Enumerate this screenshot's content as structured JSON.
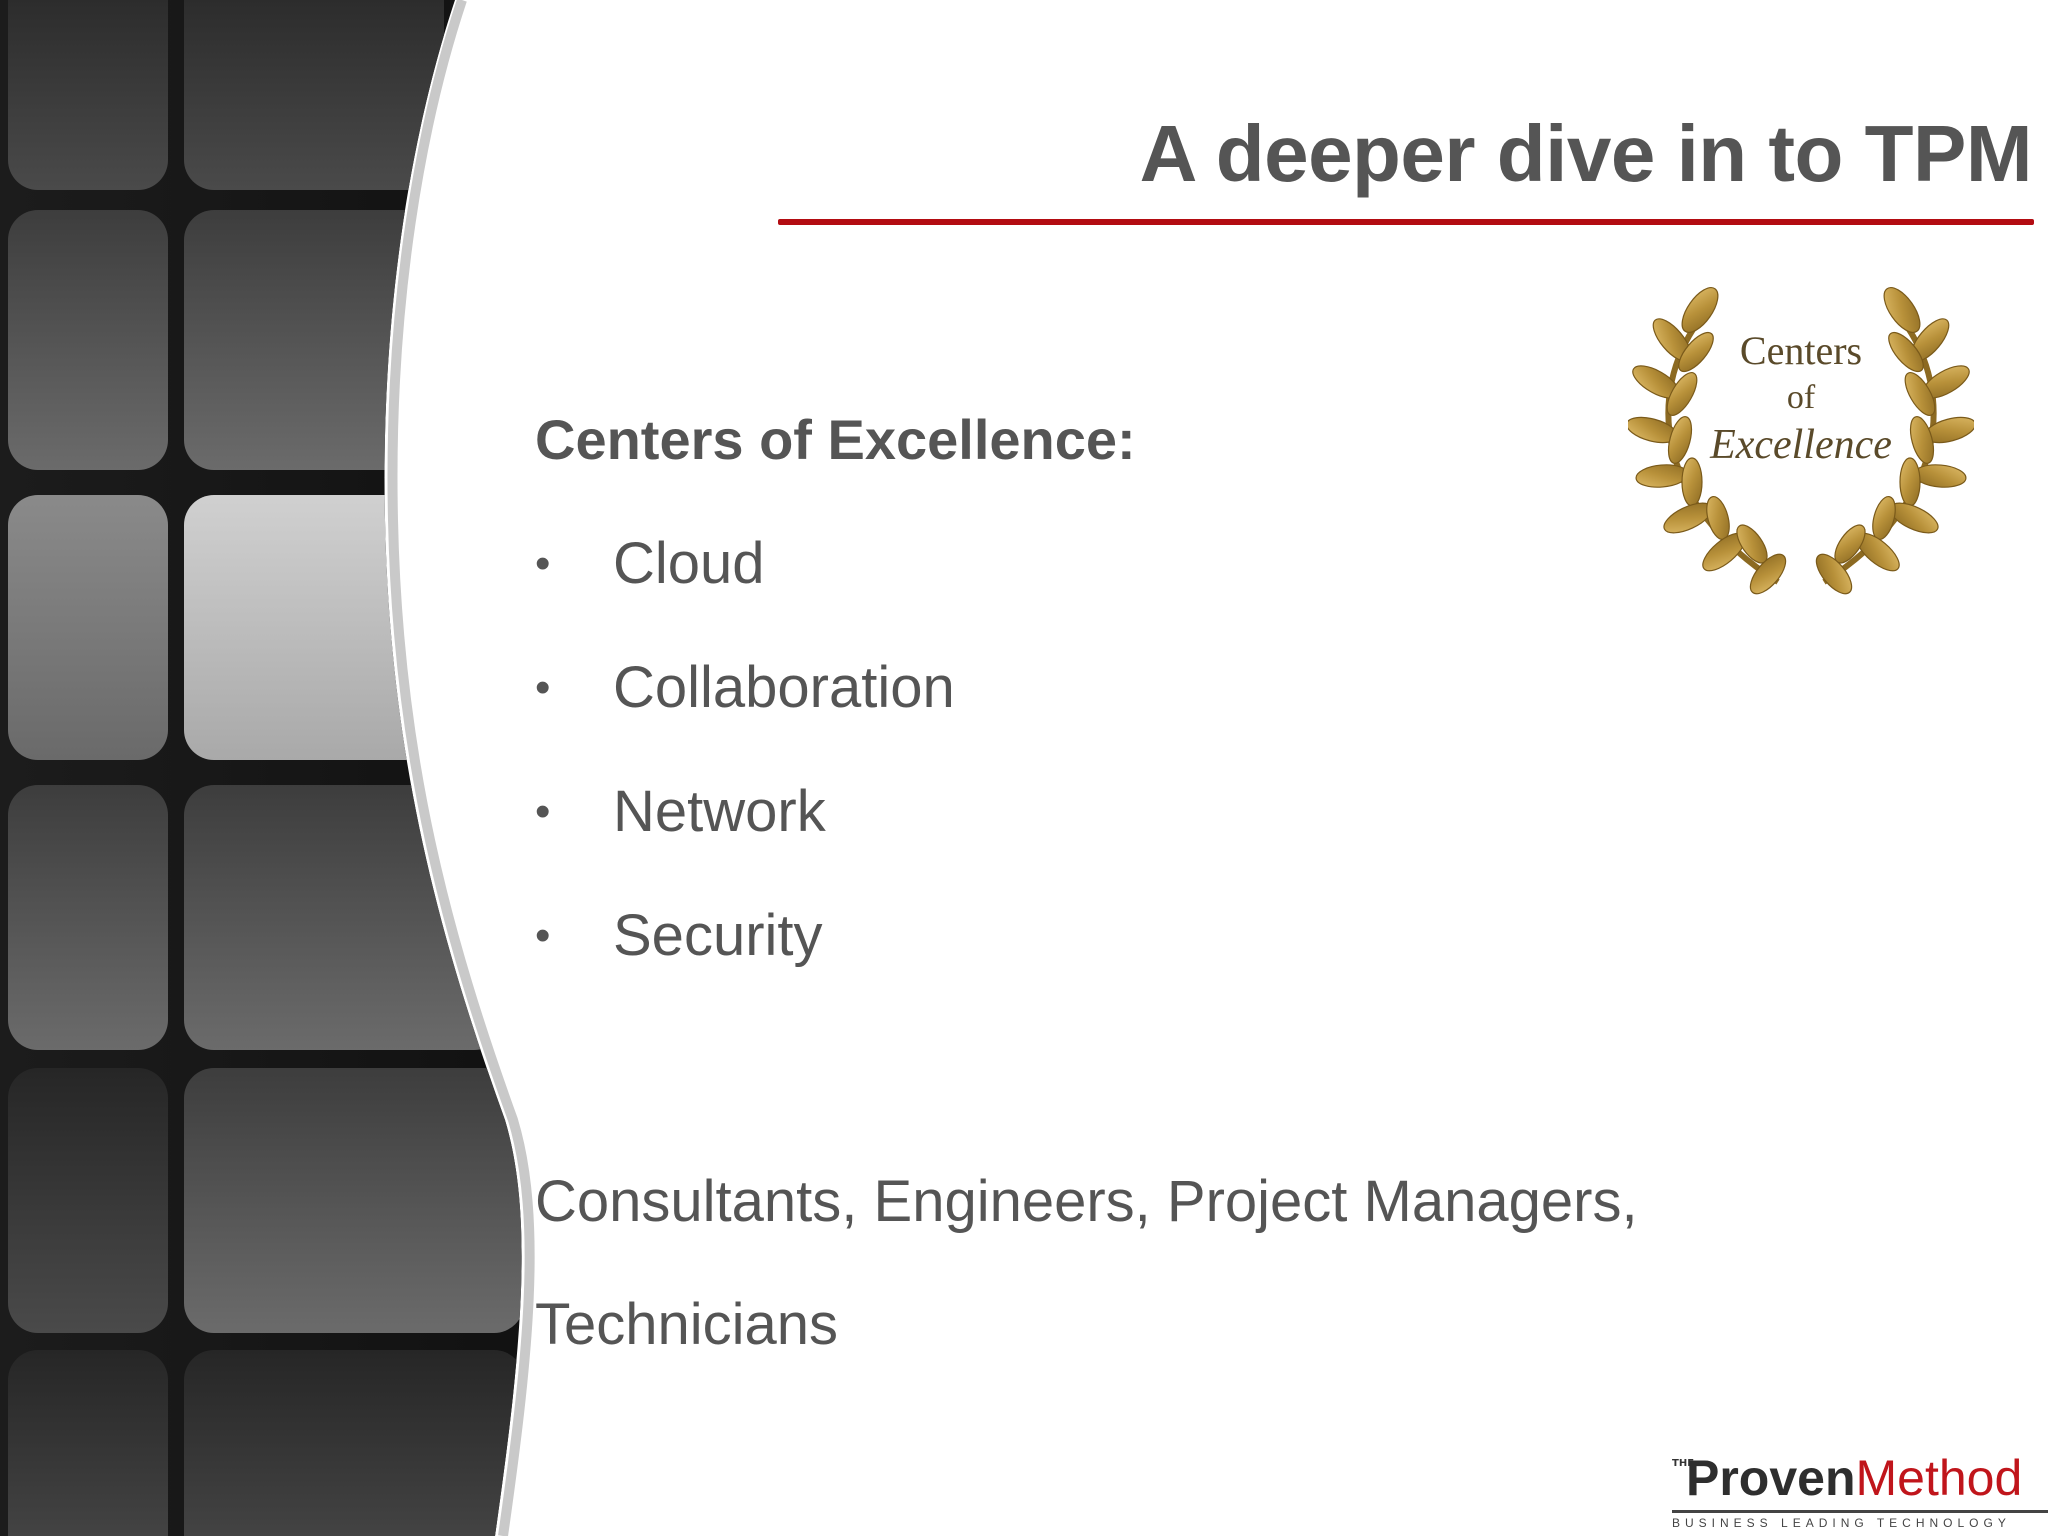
{
  "slide": {
    "title": "A deeper dive in to TPM",
    "accent_color": "#b30c12",
    "text_color": "#555555"
  },
  "content": {
    "heading": "Centers of Excellence:",
    "bullets": [
      "Cloud",
      "Collaboration",
      "Network",
      "Security"
    ],
    "bullet_glyph": "•",
    "roles_line1": "Consultants, Engineers, Project Managers,",
    "roles_line2": "Technicians"
  },
  "emblem": {
    "line1": "Centers",
    "line2": "of",
    "line3": "Excellence",
    "color": "#b8913a"
  },
  "logo": {
    "prefix": "THE",
    "word1": "Proven",
    "word2": "Method",
    "tagline": "BUSINESS LEADING TECHNOLOGY",
    "brand_red": "#c0151b"
  },
  "decor": {
    "left_panel": "dark-rounded-tile-pattern"
  }
}
